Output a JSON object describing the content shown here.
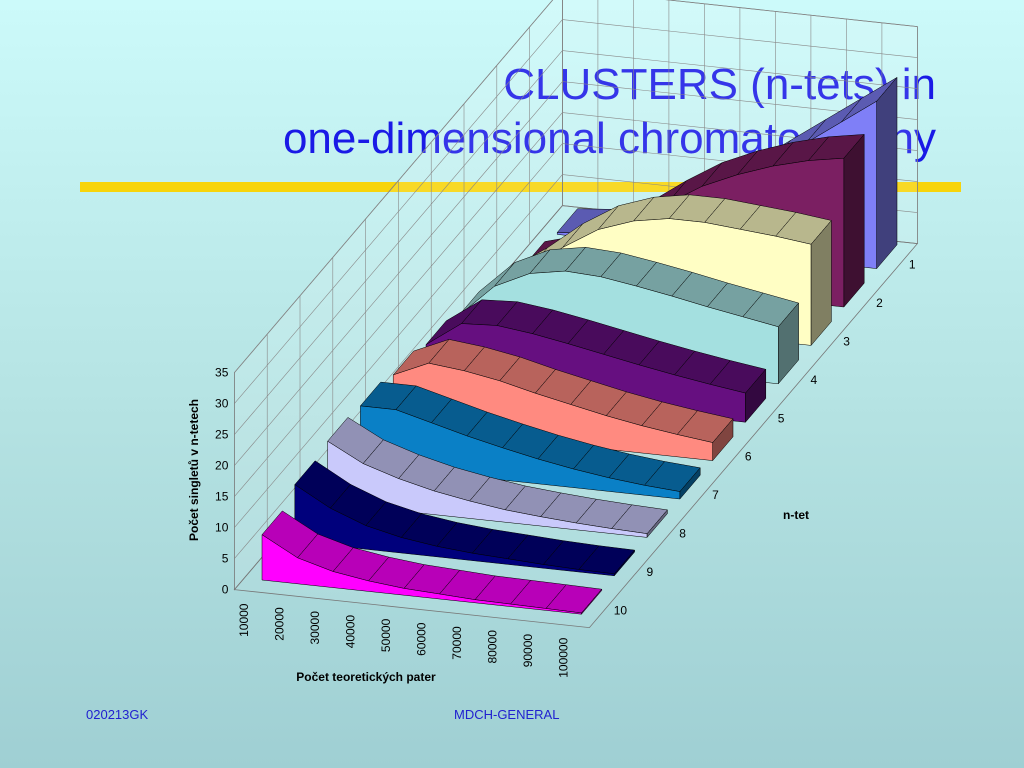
{
  "slide": {
    "title_line1": "CLUSTERS  (n-tets) in",
    "title_line2": "one-dimensional chromatography",
    "footer_left": "020213GK",
    "footer_center": "MDCH-GENERAL",
    "rule_color": "#f7d40a",
    "title_color": "#1a1ae6"
  },
  "chart_data": {
    "type": "area",
    "style": "3d-ribbon",
    "x_label": "Počet teoretických pater",
    "y_label": "Počet singletů v n-tetech",
    "z_label": "n-tet",
    "x": [
      10000,
      20000,
      30000,
      40000,
      50000,
      60000,
      70000,
      80000,
      90000,
      100000
    ],
    "y_ticks": [
      0,
      5,
      10,
      15,
      20,
      25,
      30,
      35
    ],
    "ylim": [
      0,
      35
    ],
    "series": [
      {
        "name": "1",
        "color": "#7f7ff7",
        "values": [
          0.3,
          0.8,
          2.0,
          4.2,
          7.5,
          11.0,
          15.0,
          19.0,
          23.0,
          27.0
        ]
      },
      {
        "name": "2",
        "color": "#7b1f62",
        "values": [
          1.2,
          2.8,
          5.5,
          9.5,
          13.5,
          17.0,
          19.5,
          21.5,
          23.0,
          24.0
        ]
      },
      {
        "name": "3",
        "color": "#fffec4",
        "values": [
          3.2,
          7.0,
          11.5,
          15.0,
          17.0,
          18.0,
          18.0,
          17.5,
          17.0,
          16.3
        ]
      },
      {
        "name": "4",
        "color": "#a4e0e0",
        "values": [
          5.5,
          10.8,
          13.5,
          14.5,
          14.2,
          13.3,
          12.3,
          11.2,
          10.2,
          9.2
        ]
      },
      {
        "name": "5",
        "color": "#660f80",
        "values": [
          7.0,
          11.0,
          11.3,
          10.6,
          9.6,
          8.5,
          7.4,
          6.4,
          5.5,
          4.7
        ]
      },
      {
        "name": "6",
        "color": "#ff8a80",
        "values": [
          8.3,
          10.8,
          10.2,
          9.2,
          7.8,
          6.6,
          5.4,
          4.4,
          3.6,
          2.9
        ]
      },
      {
        "name": "7",
        "color": "#0a80c6",
        "values": [
          9.5,
          9.5,
          8.0,
          6.5,
          5.2,
          4.0,
          3.0,
          2.2,
          1.6,
          1.2
        ]
      },
      {
        "name": "8",
        "color": "#c9c9fb",
        "values": [
          10.0,
          7.0,
          5.2,
          3.8,
          2.8,
          2.0,
          1.5,
          1.1,
          0.8,
          0.6
        ]
      },
      {
        "name": "9",
        "color": "#00007c",
        "values": [
          9.2,
          6.0,
          3.8,
          2.5,
          1.7,
          1.2,
          0.9,
          0.6,
          0.4,
          0.3
        ]
      },
      {
        "name": "10",
        "color": "#ff00ff",
        "values": [
          7.3,
          4.2,
          2.6,
          1.7,
          1.1,
          0.8,
          0.5,
          0.4,
          0.3,
          0.2
        ]
      }
    ]
  }
}
